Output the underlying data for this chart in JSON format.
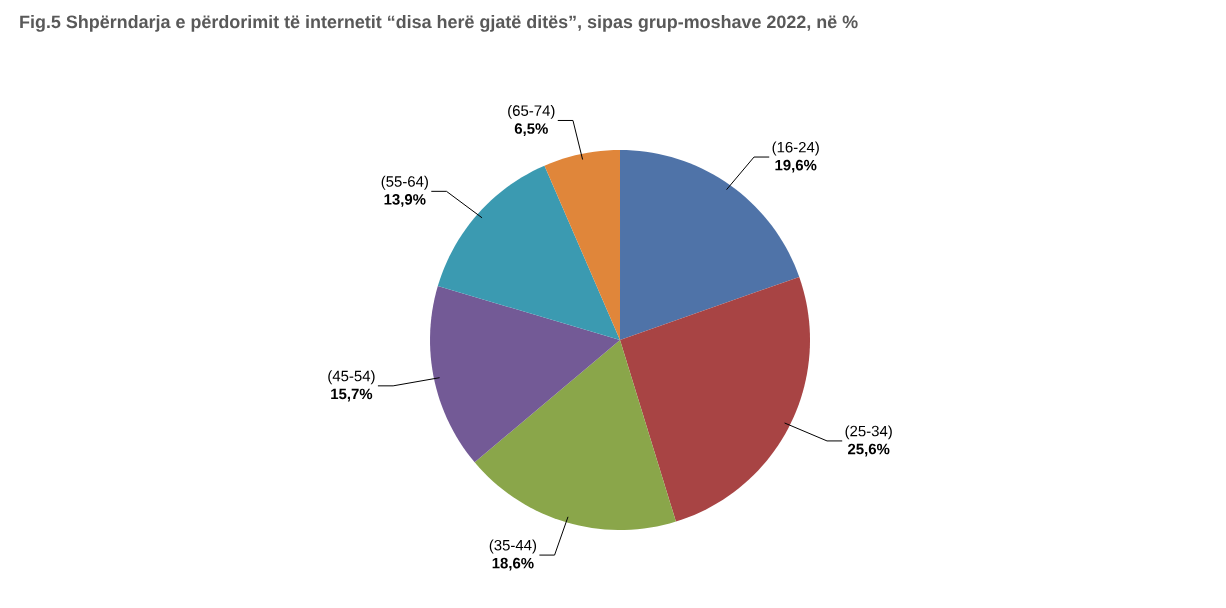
{
  "chart_data": {
    "type": "pie",
    "title": "Fig.5 Shpërndarja e përdorimit të internetit “disa herë gjatë ditës”, sipas grup-moshave 2022, në %",
    "categories": [
      "(16-24)",
      "(25-34)",
      "(35-44)",
      "(45-54)",
      "(55-64)",
      "(65-74)"
    ],
    "values": [
      19.6,
      25.6,
      18.6,
      15.7,
      13.9,
      6.5
    ],
    "value_labels": [
      "19,6%",
      "25,6%",
      "18,6%",
      "15,7%",
      "13,9%",
      "6,5%"
    ],
    "colors": [
      "#4f73a8",
      "#a84444",
      "#8aa64a",
      "#735a96",
      "#3b9ab1",
      "#e0863a"
    ]
  }
}
